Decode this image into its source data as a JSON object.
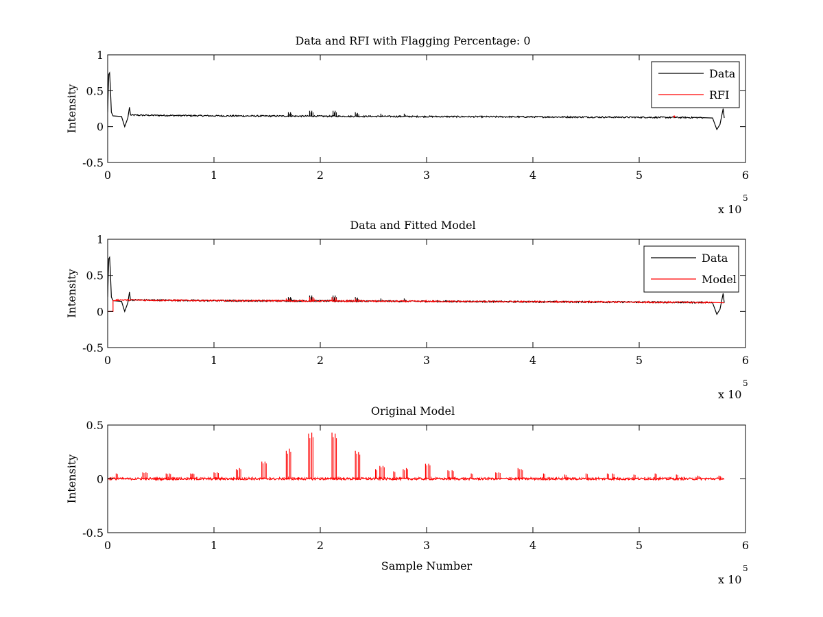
{
  "chart_data": [
    {
      "type": "line",
      "title": "Data and RFI with Flagging Percentage: 0",
      "xlabel": "",
      "ylabel": "Intensity",
      "xlim": [
        0,
        6
      ],
      "ylim": [
        -0.5,
        1
      ],
      "xticks": [
        "0",
        "1",
        "2",
        "3",
        "4",
        "5",
        "6"
      ],
      "yticks": [
        "-0.5",
        "0",
        "0.5",
        "1"
      ],
      "x_multiplier": {
        "base": "x 10",
        "exp": "5"
      },
      "legend": {
        "position": "top-right",
        "entries": [
          "Data",
          "RFI"
        ]
      },
      "grid": false,
      "series": [
        {
          "name": "Data",
          "color": "#000000",
          "baseline": [
            [
              0,
              0.2
            ],
            [
              0.005,
              0.5
            ],
            [
              0.01,
              0.73
            ],
            [
              0.018,
              0.75
            ],
            [
              0.025,
              0.55
            ],
            [
              0.035,
              0.2
            ],
            [
              0.05,
              0.15
            ],
            [
              0.13,
              0.14
            ],
            [
              0.16,
              0.0
            ],
            [
              0.19,
              0.12
            ],
            [
              0.205,
              0.27
            ],
            [
              0.215,
              0.16
            ],
            [
              1.0,
              0.15
            ],
            [
              2.0,
              0.145
            ],
            [
              3.0,
              0.14
            ],
            [
              4.0,
              0.135
            ],
            [
              5.0,
              0.13
            ],
            [
              5.6,
              0.125
            ],
            [
              5.69,
              0.12
            ],
            [
              5.73,
              -0.04
            ],
            [
              5.76,
              0.03
            ],
            [
              5.79,
              0.25
            ],
            [
              5.8,
              0.12
            ]
          ],
          "spikes": [
            [
              1.7,
              0.2
            ],
            [
              1.72,
              0.2
            ],
            [
              1.9,
              0.22
            ],
            [
              1.92,
              0.22
            ],
            [
              2.12,
              0.22
            ],
            [
              2.14,
              0.22
            ],
            [
              2.33,
              0.2
            ],
            [
              2.35,
              0.19
            ],
            [
              2.57,
              0.18
            ],
            [
              2.79,
              0.18
            ]
          ]
        },
        {
          "name": "RFI",
          "color": "#ff0000",
          "points": [
            [
              5.33,
              0.14
            ]
          ]
        }
      ]
    },
    {
      "type": "line",
      "title": "Data and Fitted Model",
      "xlabel": "",
      "ylabel": "Intensity",
      "xlim": [
        0,
        6
      ],
      "ylim": [
        -0.5,
        1
      ],
      "xticks": [
        "0",
        "1",
        "2",
        "3",
        "4",
        "5",
        "6"
      ],
      "yticks": [
        "-0.5",
        "0",
        "0.5",
        "1"
      ],
      "x_multiplier": {
        "base": "x 10",
        "exp": "5"
      },
      "legend": {
        "position": "top-right",
        "entries": [
          "Data",
          "Model"
        ]
      },
      "grid": false,
      "series": [
        {
          "name": "Data",
          "color": "#000000",
          "baseline": [
            [
              0,
              0.2
            ],
            [
              0.005,
              0.5
            ],
            [
              0.01,
              0.73
            ],
            [
              0.018,
              0.75
            ],
            [
              0.025,
              0.55
            ],
            [
              0.035,
              0.2
            ],
            [
              0.05,
              0.15
            ],
            [
              0.13,
              0.14
            ],
            [
              0.16,
              0.0
            ],
            [
              0.19,
              0.12
            ],
            [
              0.205,
              0.27
            ],
            [
              0.215,
              0.16
            ],
            [
              1.0,
              0.15
            ],
            [
              2.0,
              0.145
            ],
            [
              3.0,
              0.14
            ],
            [
              4.0,
              0.135
            ],
            [
              5.0,
              0.13
            ],
            [
              5.6,
              0.125
            ],
            [
              5.69,
              0.12
            ],
            [
              5.73,
              -0.04
            ],
            [
              5.76,
              0.03
            ],
            [
              5.79,
              0.25
            ],
            [
              5.8,
              0.12
            ]
          ],
          "spikes": [
            [
              1.7,
              0.2
            ],
            [
              1.72,
              0.2
            ],
            [
              1.9,
              0.22
            ],
            [
              1.92,
              0.22
            ],
            [
              2.12,
              0.22
            ],
            [
              2.14,
              0.22
            ],
            [
              2.33,
              0.2
            ],
            [
              2.35,
              0.19
            ],
            [
              2.57,
              0.18
            ],
            [
              2.79,
              0.18
            ]
          ]
        },
        {
          "name": "Model",
          "color": "#ff0000",
          "baseline": [
            [
              0,
              0.0
            ],
            [
              0.05,
              0.0
            ],
            [
              0.05,
              0.15
            ],
            [
              0.08,
              0.15
            ],
            [
              0.08,
              0.16
            ],
            [
              1.0,
              0.15
            ],
            [
              2.0,
              0.145
            ],
            [
              3.0,
              0.14
            ],
            [
              4.0,
              0.135
            ],
            [
              5.0,
              0.13
            ],
            [
              5.7,
              0.125
            ],
            [
              5.8,
              0.12
            ]
          ],
          "spikes": [
            [
              1.68,
              0.18
            ],
            [
              1.71,
              0.18
            ],
            [
              1.9,
              0.2
            ],
            [
              1.93,
              0.2
            ],
            [
              2.11,
              0.2
            ],
            [
              2.14,
              0.2
            ],
            [
              2.33,
              0.18
            ],
            [
              2.36,
              0.17
            ],
            [
              3.0,
              0.16
            ]
          ]
        }
      ]
    },
    {
      "type": "line",
      "title": "Original Model",
      "xlabel": "Sample Number",
      "ylabel": "Intensity",
      "xlim": [
        0,
        6
      ],
      "ylim": [
        -0.5,
        0.5
      ],
      "xticks": [
        "0",
        "1",
        "2",
        "3",
        "4",
        "5",
        "6"
      ],
      "yticks": [
        "-0.5",
        "0",
        "0.5"
      ],
      "x_multiplier": {
        "base": "x 10",
        "exp": "5"
      },
      "legend": null,
      "grid": false,
      "series": [
        {
          "color": "#ff0000",
          "baseline": [
            [
              0.0,
              0.0
            ],
            [
              5.8,
              0.0
            ]
          ],
          "spikes": [
            [
              0.08,
              0.05
            ],
            [
              0.33,
              0.06
            ],
            [
              0.36,
              0.06
            ],
            [
              0.55,
              0.05
            ],
            [
              0.58,
              0.05
            ],
            [
              0.78,
              0.05
            ],
            [
              0.8,
              0.05
            ],
            [
              1.0,
              0.06
            ],
            [
              1.03,
              0.06
            ],
            [
              1.21,
              0.09
            ],
            [
              1.24,
              0.1
            ],
            [
              1.45,
              0.16
            ],
            [
              1.48,
              0.16
            ],
            [
              1.68,
              0.26
            ],
            [
              1.71,
              0.28
            ],
            [
              1.89,
              0.42
            ],
            [
              1.92,
              0.43
            ],
            [
              2.11,
              0.43
            ],
            [
              2.14,
              0.42
            ],
            [
              2.33,
              0.26
            ],
            [
              2.36,
              0.25
            ],
            [
              2.52,
              0.09
            ],
            [
              2.56,
              0.12
            ],
            [
              2.59,
              0.12
            ],
            [
              2.69,
              0.07
            ],
            [
              2.78,
              0.09
            ],
            [
              2.81,
              0.1
            ],
            [
              2.99,
              0.14
            ],
            [
              3.02,
              0.14
            ],
            [
              3.2,
              0.08
            ],
            [
              3.24,
              0.08
            ],
            [
              3.42,
              0.05
            ],
            [
              3.65,
              0.06
            ],
            [
              3.68,
              0.06
            ],
            [
              3.86,
              0.1
            ],
            [
              3.89,
              0.09
            ],
            [
              4.1,
              0.05
            ],
            [
              4.3,
              0.04
            ],
            [
              4.5,
              0.05
            ],
            [
              4.7,
              0.05
            ],
            [
              4.75,
              0.05
            ],
            [
              4.95,
              0.04
            ],
            [
              5.15,
              0.05
            ],
            [
              5.35,
              0.04
            ],
            [
              5.55,
              0.03
            ],
            [
              5.75,
              0.03
            ]
          ],
          "noise_level": 0.02
        }
      ]
    }
  ]
}
